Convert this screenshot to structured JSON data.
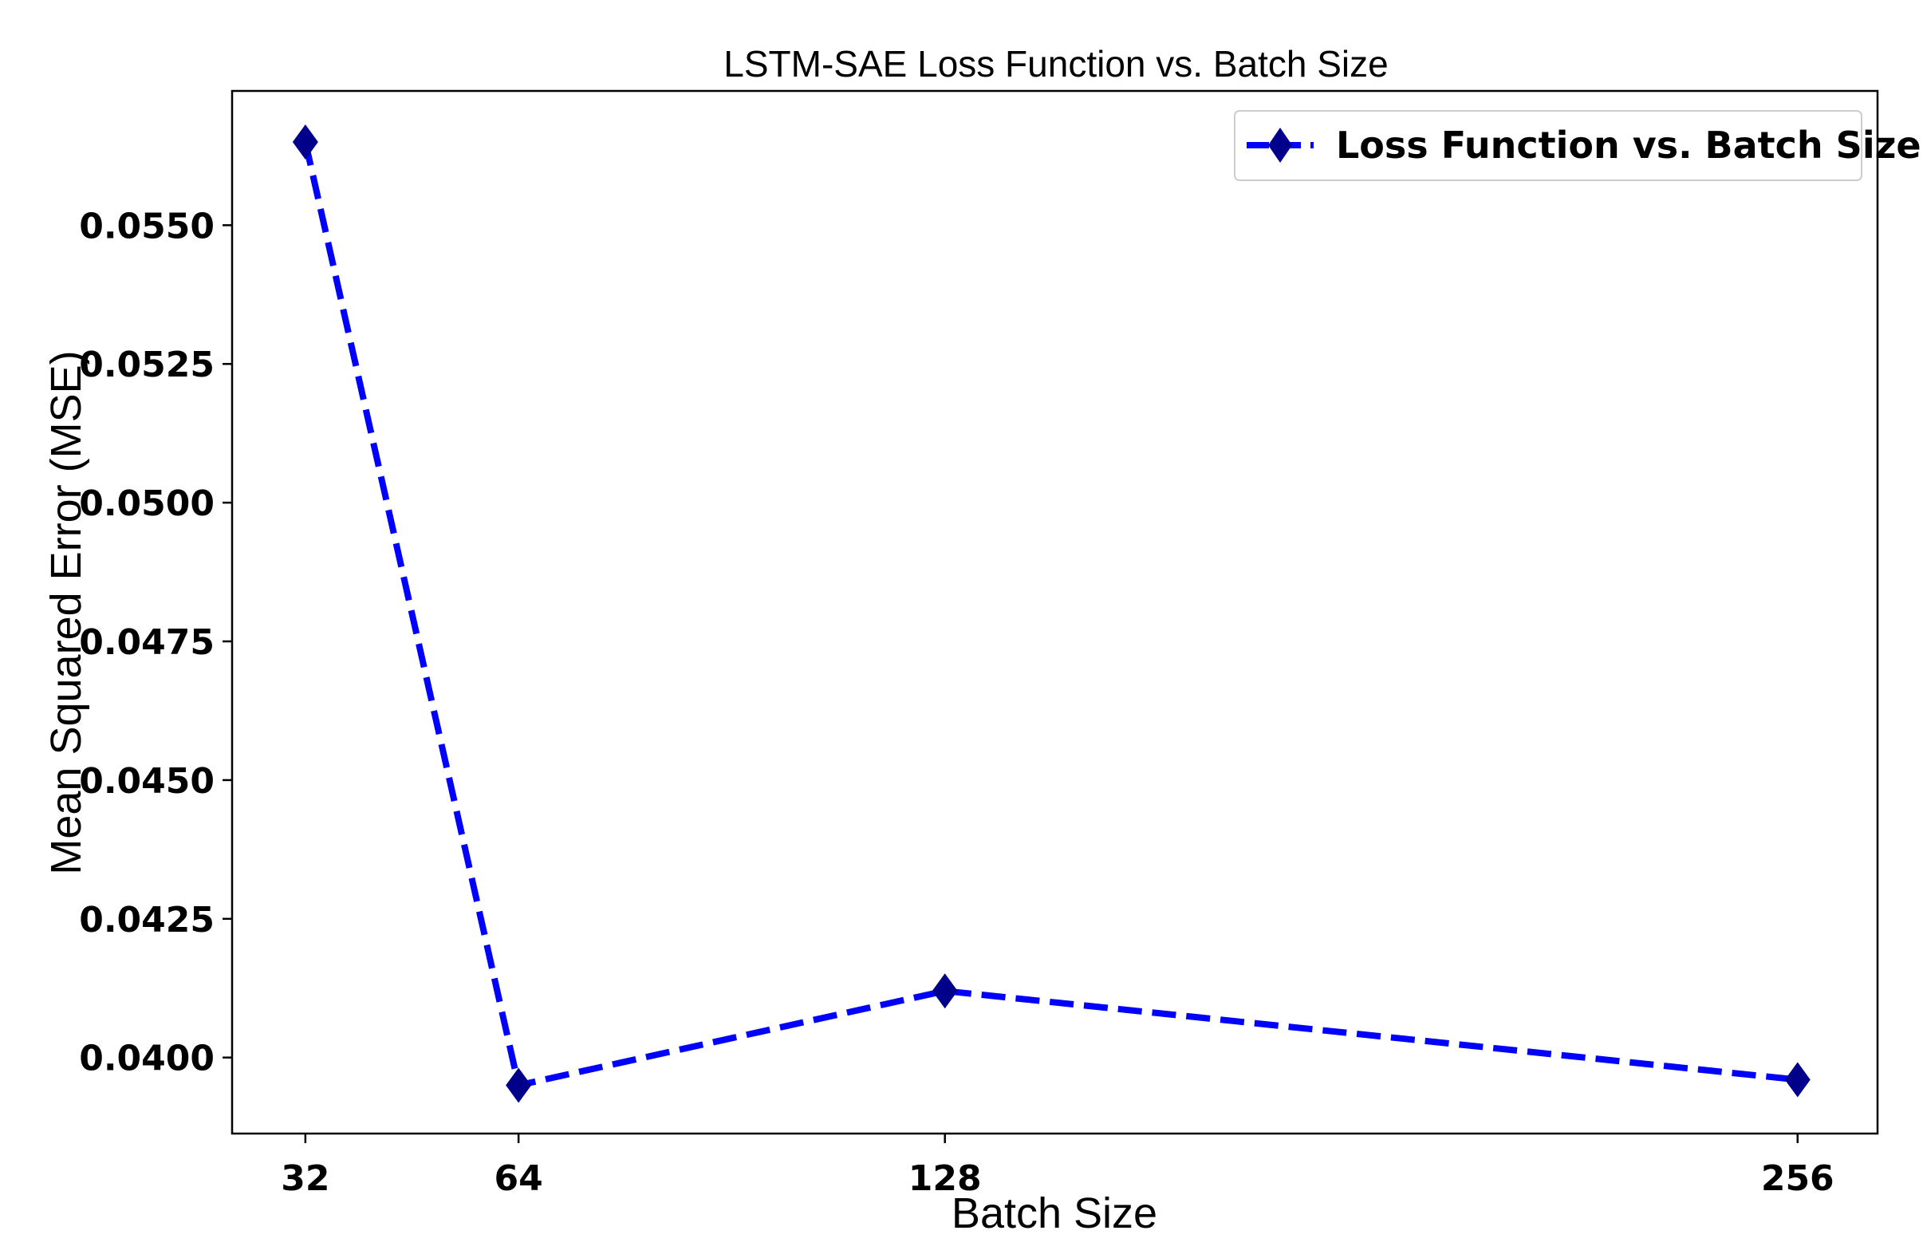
{
  "chart_data": {
    "type": "line",
    "title": "LSTM-SAE Loss Function vs. Batch Size",
    "xlabel": "Batch Size",
    "ylabel": "Mean Squared Error (MSE)",
    "x": [
      32,
      64,
      128,
      256
    ],
    "x_tick_labels": [
      "32",
      "64",
      "128",
      "256"
    ],
    "y_ticks": [
      0.04,
      0.0425,
      0.045,
      0.0475,
      0.05,
      0.0525,
      0.055
    ],
    "y_tick_labels": [
      "0.0400",
      "0.0425",
      "0.0450",
      "0.0475",
      "0.0500",
      "0.0525",
      "0.0550"
    ],
    "xlim": [
      21,
      268
    ],
    "ylim": [
      0.03863,
      0.05742
    ],
    "grid": false,
    "legend_position": "top-right",
    "series": [
      {
        "name": "Loss Function vs. Batch Size",
        "values": [
          0.0565,
          0.0395,
          0.0412,
          0.0396
        ],
        "line_color": "#0000ff",
        "marker_color": "#00008b",
        "line_style": "dashed",
        "marker": "diamond"
      }
    ]
  }
}
